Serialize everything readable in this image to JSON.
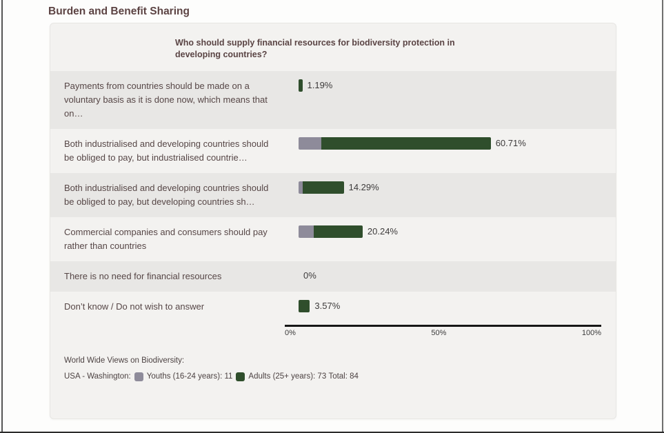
{
  "page": {
    "title": "Burden and Benefit Sharing"
  },
  "header": {
    "question_line1": "Who should supply financial resources for biodiversity protection in",
    "question_line2": "developing countries?"
  },
  "chart_data": {
    "type": "bar",
    "orientation": "horizontal-stacked",
    "title": "Who should supply financial resources for biodiversity protection in developing countries?",
    "categories": [
      "Payments from countries should be made on a voluntary basis as it is done now, which means that on…",
      "Both industrialised and developing countries should be obliged to pay, but industrialised countrie…",
      "Both industrialised and developing countries should be obliged to pay, but developing countries sh…",
      "Commercial companies and consumers should pay rather than countries",
      "There is no need for financial resources",
      "Don’t know / Do not wish to answer"
    ],
    "series": [
      {
        "name": "Youths (16-24 years)",
        "count": 11,
        "color": "#8e8b9a",
        "values": [
          0,
          7.14,
          1.19,
          4.76,
          0,
          0
        ]
      },
      {
        "name": "Adults (25+ years)",
        "count": 73,
        "color": "#2f4e2c",
        "values": [
          1.19,
          53.57,
          13.1,
          15.48,
          0,
          3.57
        ]
      }
    ],
    "totals": [
      "1.19%",
      "60.71%",
      "14.29%",
      "20.24%",
      "0%",
      "3.57%"
    ],
    "xlim": [
      0,
      100
    ],
    "axis": {
      "ticks": [
        "0%",
        "50%",
        "100%"
      ]
    },
    "legend_position": "bottom",
    "grid": false
  },
  "footer": {
    "line1": "World Wide Views on Biodiversity:",
    "location": "USA - Washington:",
    "youths_label": "Youths (16-24 years): 11",
    "adults_label": "Adults (25+ years): 73",
    "total_label": "Total: 84"
  }
}
